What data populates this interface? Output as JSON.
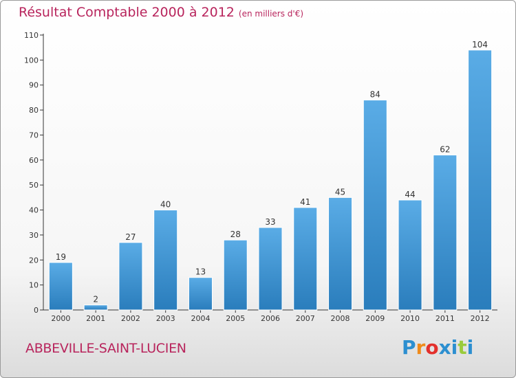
{
  "title": "Résultat Comptable 2000 à 2012",
  "subtitle": "(en milliers d'€)",
  "commune": "ABBEVILLE-SAINT-LUCIEN",
  "logo": {
    "text": "Proxiti",
    "letters": [
      "P",
      "r",
      "o",
      "x",
      "i",
      "t",
      "i"
    ],
    "colors": [
      "#2c8fd0",
      "#ef8a1a",
      "#e3302c",
      "#2c8fd0",
      "#2c8fd0",
      "#9acb3c",
      "#2c8fd0"
    ]
  },
  "colors": {
    "title": "#b8245c",
    "bar_light": "#5aace6",
    "bar_dark": "#2a7dbc",
    "axis": "#333333"
  },
  "chart_data": {
    "type": "bar",
    "title": "Résultat Comptable 2000 à 2012",
    "subtitle": "(en milliers d'€)",
    "categories": [
      "2000",
      "2001",
      "2002",
      "2003",
      "2004",
      "2005",
      "2006",
      "2007",
      "2008",
      "2009",
      "2010",
      "2011",
      "2012"
    ],
    "values": [
      19,
      2,
      27,
      40,
      13,
      28,
      33,
      41,
      45,
      84,
      44,
      62,
      104
    ],
    "ylim": [
      0,
      110
    ],
    "yticks": [
      0,
      10,
      20,
      30,
      40,
      50,
      60,
      70,
      80,
      90,
      100,
      110
    ],
    "grid": false,
    "legend": "none"
  }
}
